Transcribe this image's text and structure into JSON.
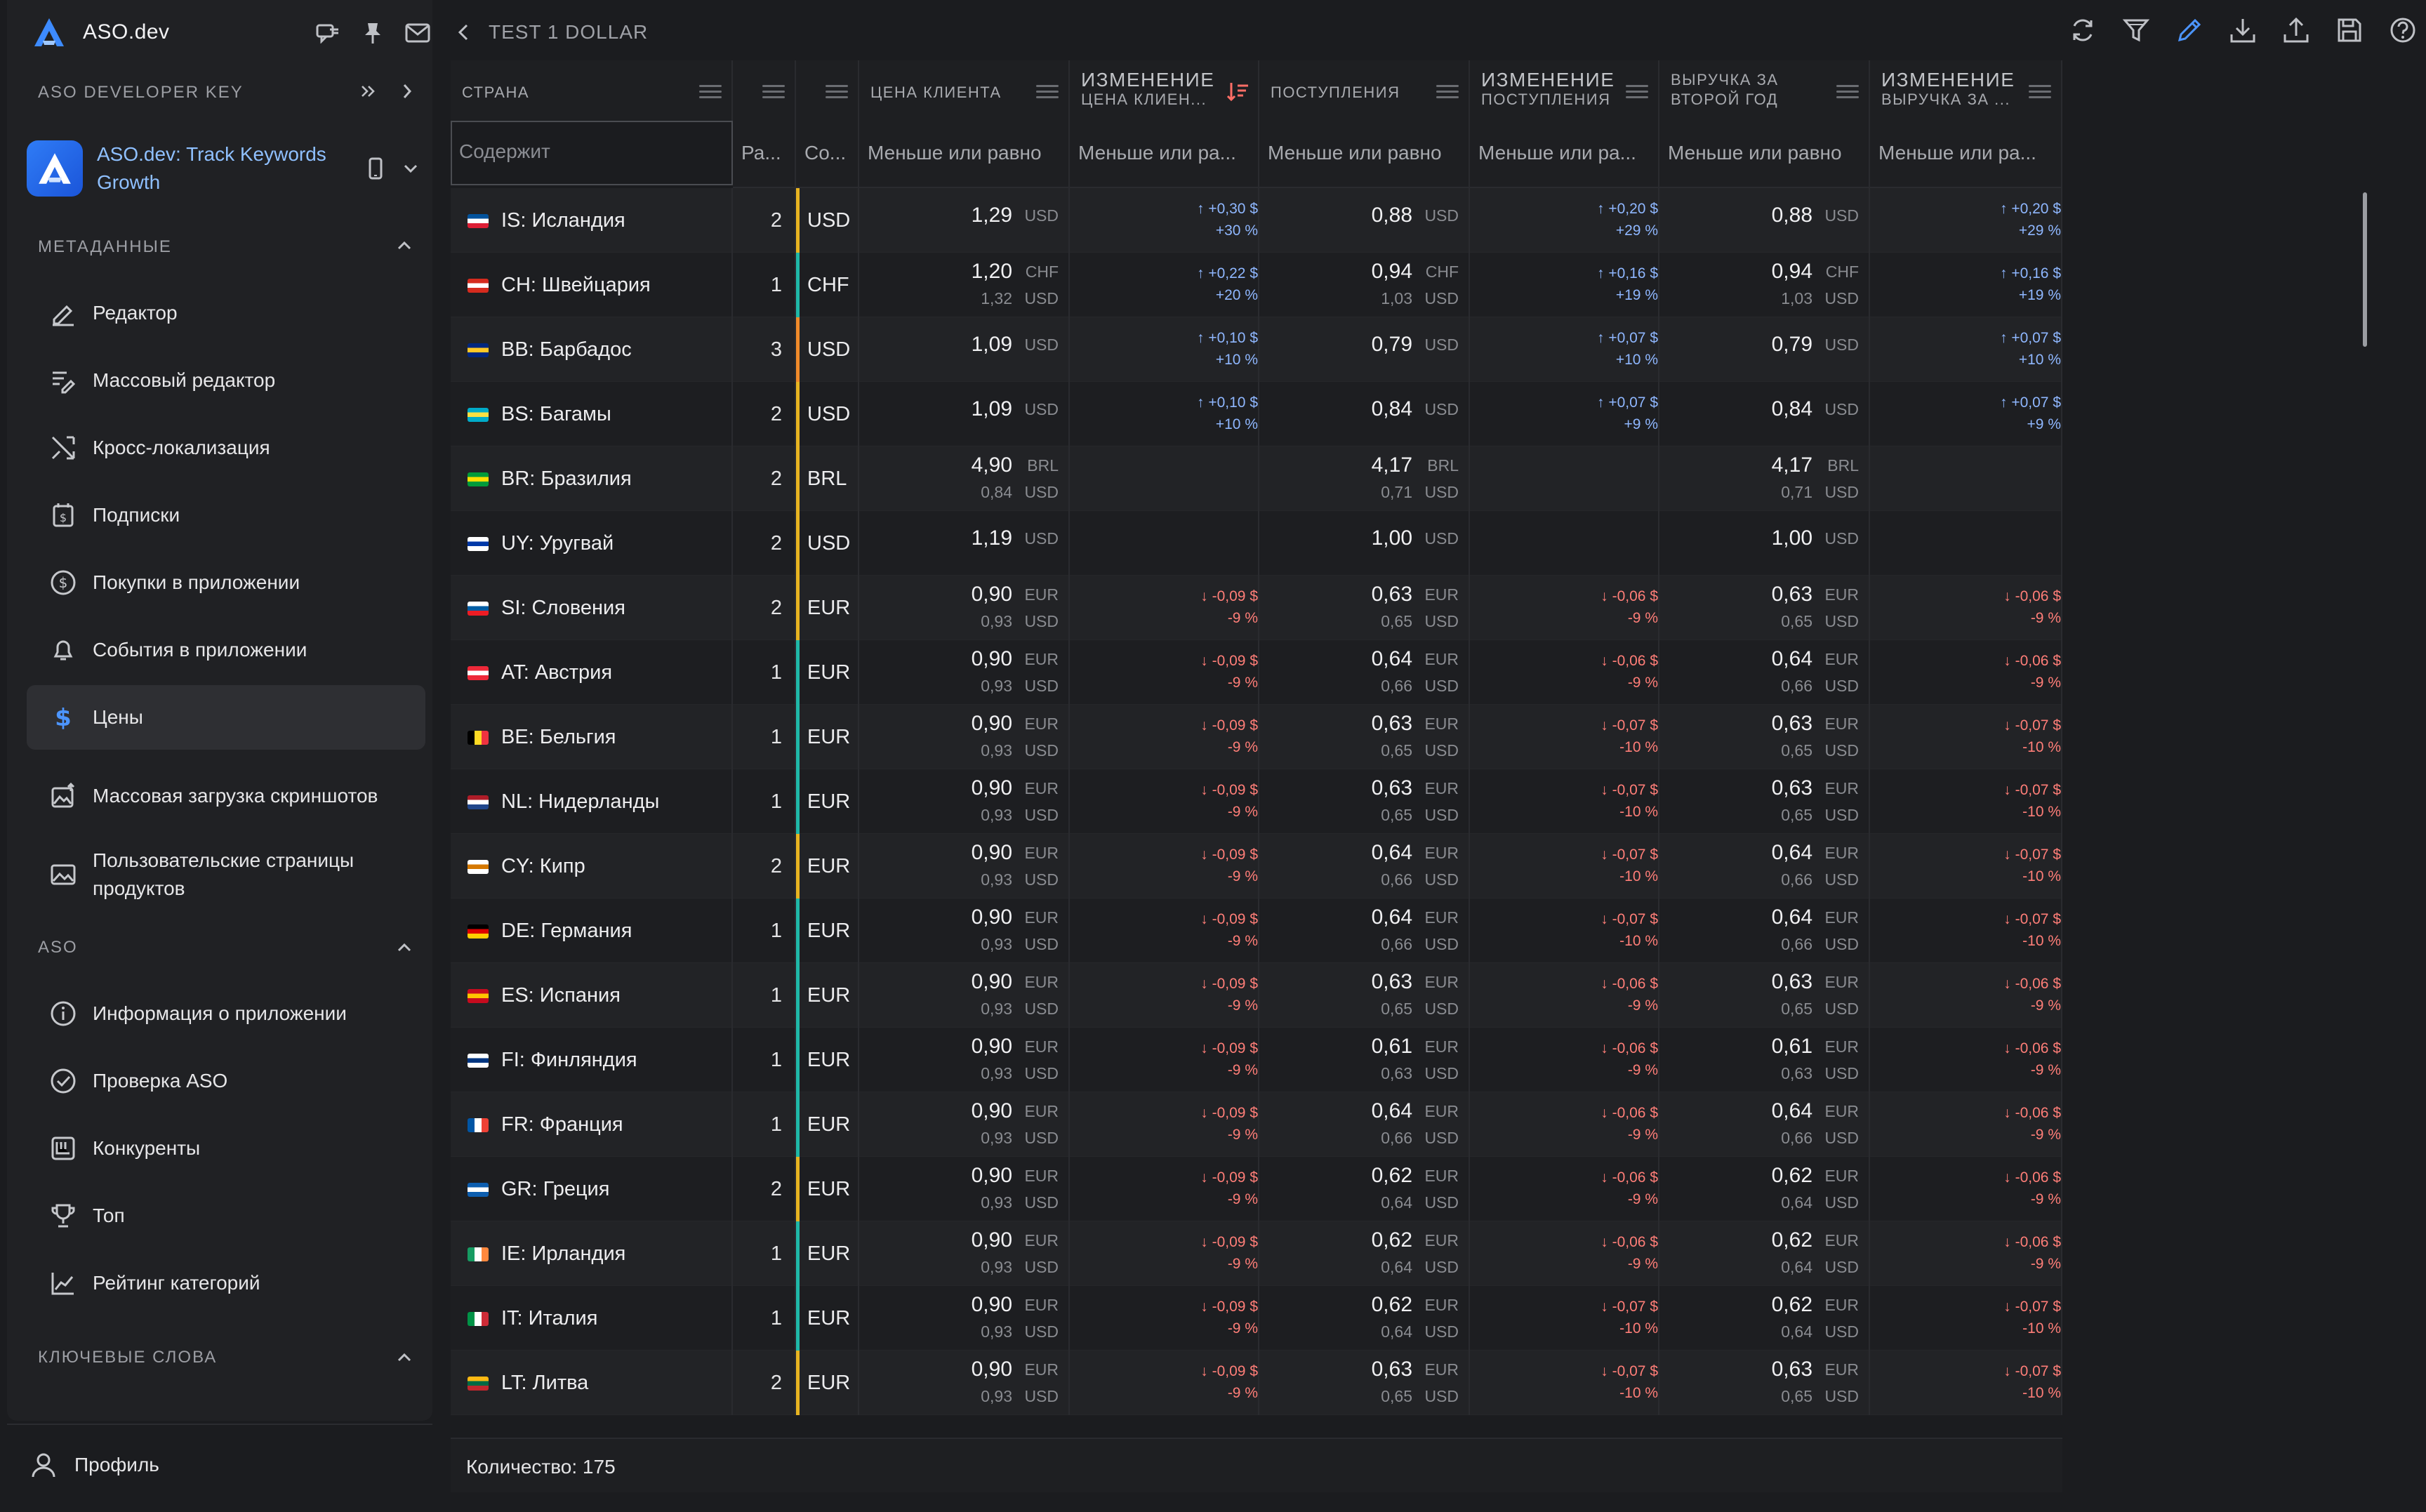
{
  "sidebar": {
    "brand": "ASO.dev",
    "developer_key_label": "ASO DEVELOPER KEY",
    "app_name": "ASO.dev: Track Keywords Growth",
    "sections": {
      "metadata": "МЕТАДАННЫЕ",
      "aso": "ASO",
      "keywords": "КЛЮЧЕВЫЕ СЛОВА"
    },
    "metadata_items": [
      {
        "label": "Редактор",
        "icon": "edit-icon"
      },
      {
        "label": "Массовый редактор",
        "icon": "bulk-edit-icon"
      },
      {
        "label": "Кросс-локализация",
        "icon": "shuffle-icon"
      },
      {
        "label": "Подписки",
        "icon": "subscription-icon"
      },
      {
        "label": "Покупки в приложении",
        "icon": "dollar-circle-icon"
      },
      {
        "label": "События в приложении",
        "icon": "bell-icon"
      },
      {
        "label": "Цены",
        "icon": "dollar-icon",
        "active": true
      },
      {
        "label": "Массовая загрузка скриншотов",
        "icon": "image-upload-icon"
      },
      {
        "label": "Пользовательские страницы продуктов",
        "icon": "image-icon"
      }
    ],
    "aso_items": [
      {
        "label": "Информация о приложении",
        "icon": "info-icon"
      },
      {
        "label": "Проверка ASO",
        "icon": "check-circle-icon"
      },
      {
        "label": "Конкуренты",
        "icon": "competitors-icon"
      },
      {
        "label": "Топ",
        "icon": "trophy-icon"
      },
      {
        "label": "Рейтинг категорий",
        "icon": "chart-icon"
      }
    ],
    "profile_label": "Профиль"
  },
  "header": {
    "title": "TEST 1 DOLLAR"
  },
  "columns": [
    {
      "key": "country",
      "label": "СТРАНА",
      "filter": "Содержит"
    },
    {
      "key": "rank",
      "label": "",
      "filter": "Ра..."
    },
    {
      "key": "currency",
      "label": "",
      "filter": "Со..."
    },
    {
      "key": "price",
      "label": "ЦЕНА КЛИЕНТА",
      "filter": "Меньше или равно"
    },
    {
      "key": "price_change",
      "label_big": "ИЗМЕНЕНИЕ",
      "label_small": "ЦЕНА КЛИЕН...",
      "filter": "Меньше или ра..."
    },
    {
      "key": "proceeds",
      "label": "ПОСТУПЛЕНИЯ",
      "filter": "Меньше или равно"
    },
    {
      "key": "proceeds_change",
      "label_big": "ИЗМЕНЕНИЕ",
      "label_small": "ПОСТУПЛЕНИЯ",
      "filter": "Меньше или ра..."
    },
    {
      "key": "proceeds_y2",
      "label_l1": "ВЫРУЧКА ЗА",
      "label_l2": "ВТОРОЙ ГОД",
      "filter": "Меньше или равно"
    },
    {
      "key": "proceeds_y2_change",
      "label_big": "ИЗМЕНЕНИЕ",
      "label_small": "ВЫРУЧКА ЗА ...",
      "filter": "Меньше или ра..."
    }
  ],
  "colors": {
    "bar_yellow": "#e7b421",
    "bar_teal": "#1fb8a8",
    "bar_orange": "#f08a2a",
    "up": "#8fb7ff",
    "down": "#ff7e78"
  },
  "rows": [
    {
      "country": "IS: Исландия",
      "flag": [
        "#02529c",
        "#ffffff",
        "#dc1e35"
      ],
      "rank": "2",
      "cur": "USD",
      "bar": "yellow",
      "price": "1,29",
      "price_cur": "USD",
      "price_sub": null,
      "pchg": [
        "↑ +0,30 $",
        "+30 %"
      ],
      "dir": "up",
      "proc": "0,88",
      "proc_cur": "USD",
      "proc_sub": null,
      "prchg": [
        "↑ +0,20 $",
        "+29 %"
      ],
      "y2": "0,88",
      "y2_cur": "USD",
      "y2_sub": null,
      "y2chg": [
        "↑ +0,20 $",
        "+29 %"
      ]
    },
    {
      "country": "CH: Швейцария",
      "flag": [
        "#d52b1e",
        "#ffffff",
        "#d52b1e"
      ],
      "rank": "1",
      "cur": "CHF",
      "bar": "teal",
      "price": "1,20",
      "price_cur": "CHF",
      "price_sub": "1,32",
      "pchg": [
        "↑ +0,22 $",
        "+20 %"
      ],
      "dir": "up",
      "proc": "0,94",
      "proc_cur": "CHF",
      "proc_sub": "1,03",
      "prchg": [
        "↑ +0,16 $",
        "+19 %"
      ],
      "y2": "0,94",
      "y2_cur": "CHF",
      "y2_sub": "1,03",
      "y2chg": [
        "↑ +0,16 $",
        "+19 %"
      ]
    },
    {
      "country": "BB: Барбадос",
      "flag": [
        "#00267f",
        "#ffc726",
        "#00267f"
      ],
      "rank": "3",
      "cur": "USD",
      "bar": "orange",
      "price": "1,09",
      "price_cur": "USD",
      "price_sub": null,
      "pchg": [
        "↑ +0,10 $",
        "+10 %"
      ],
      "dir": "up",
      "proc": "0,79",
      "proc_cur": "USD",
      "proc_sub": null,
      "prchg": [
        "↑ +0,07 $",
        "+10 %"
      ],
      "y2": "0,79",
      "y2_cur": "USD",
      "y2_sub": null,
      "y2chg": [
        "↑ +0,07 $",
        "+10 %"
      ]
    },
    {
      "country": "BS: Багамы",
      "flag": [
        "#00abc9",
        "#fae042",
        "#00abc9"
      ],
      "rank": "2",
      "cur": "USD",
      "bar": "yellow",
      "price": "1,09",
      "price_cur": "USD",
      "price_sub": null,
      "pchg": [
        "↑ +0,10 $",
        "+10 %"
      ],
      "dir": "up",
      "proc": "0,84",
      "proc_cur": "USD",
      "proc_sub": null,
      "prchg": [
        "↑ +0,07 $",
        "+9 %"
      ],
      "y2": "0,84",
      "y2_cur": "USD",
      "y2_sub": null,
      "y2chg": [
        "↑ +0,07 $",
        "+9 %"
      ]
    },
    {
      "country": "BR: Бразилия",
      "flag": [
        "#009b3a",
        "#fedf00",
        "#009b3a"
      ],
      "rank": "2",
      "cur": "BRL",
      "bar": "yellow",
      "price": "4,90",
      "price_cur": "BRL",
      "price_sub": "0,84",
      "pchg": null,
      "dir": "none",
      "proc": "4,17",
      "proc_cur": "BRL",
      "proc_sub": "0,71",
      "prchg": null,
      "y2": "4,17",
      "y2_cur": "BRL",
      "y2_sub": "0,71",
      "y2chg": null
    },
    {
      "country": "UY: Уругвай",
      "flag": [
        "#ffffff",
        "#0038a8",
        "#ffffff"
      ],
      "rank": "2",
      "cur": "USD",
      "bar": "yellow",
      "price": "1,19",
      "price_cur": "USD",
      "price_sub": null,
      "pchg": null,
      "dir": "none",
      "proc": "1,00",
      "proc_cur": "USD",
      "proc_sub": null,
      "prchg": null,
      "y2": "1,00",
      "y2_cur": "USD",
      "y2_sub": null,
      "y2chg": null
    },
    {
      "country": "SI: Словения",
      "flag": [
        "#ffffff",
        "#005da4",
        "#ed1c24"
      ],
      "rank": "2",
      "cur": "EUR",
      "bar": "yellow",
      "price": "0,90",
      "price_cur": "EUR",
      "price_sub": "0,93",
      "pchg": [
        "↓ -0,09 $",
        "-9 %"
      ],
      "dir": "down",
      "proc": "0,63",
      "proc_cur": "EUR",
      "proc_sub": "0,65",
      "prchg": [
        "↓ -0,06 $",
        "-9 %"
      ],
      "y2": "0,63",
      "y2_cur": "EUR",
      "y2_sub": "0,65",
      "y2chg": [
        "↓ -0,06 $",
        "-9 %"
      ]
    },
    {
      "country": "AT: Австрия",
      "flag": [
        "#ed2939",
        "#ffffff",
        "#ed2939"
      ],
      "rank": "1",
      "cur": "EUR",
      "bar": "teal",
      "price": "0,90",
      "price_cur": "EUR",
      "price_sub": "0,93",
      "pchg": [
        "↓ -0,09 $",
        "-9 %"
      ],
      "dir": "down",
      "proc": "0,64",
      "proc_cur": "EUR",
      "proc_sub": "0,66",
      "prchg": [
        "↓ -0,06 $",
        "-9 %"
      ],
      "y2": "0,64",
      "y2_cur": "EUR",
      "y2_sub": "0,66",
      "y2chg": [
        "↓ -0,06 $",
        "-9 %"
      ]
    },
    {
      "country": "BE: Бельгия",
      "flag": [
        "#000000",
        "#fdda24",
        "#ef3340"
      ],
      "rank": "1",
      "cur": "EUR",
      "bar": "teal",
      "vertical": true,
      "price": "0,90",
      "price_cur": "EUR",
      "price_sub": "0,93",
      "pchg": [
        "↓ -0,09 $",
        "-9 %"
      ],
      "dir": "down",
      "proc": "0,63",
      "proc_cur": "EUR",
      "proc_sub": "0,65",
      "prchg": [
        "↓ -0,07 $",
        "-10 %"
      ],
      "y2": "0,63",
      "y2_cur": "EUR",
      "y2_sub": "0,65",
      "y2chg": [
        "↓ -0,07 $",
        "-10 %"
      ]
    },
    {
      "country": "NL: Нидерланды",
      "flag": [
        "#ae1c28",
        "#ffffff",
        "#21468b"
      ],
      "rank": "1",
      "cur": "EUR",
      "bar": "teal",
      "price": "0,90",
      "price_cur": "EUR",
      "price_sub": "0,93",
      "pchg": [
        "↓ -0,09 $",
        "-9 %"
      ],
      "dir": "down",
      "proc": "0,63",
      "proc_cur": "EUR",
      "proc_sub": "0,65",
      "prchg": [
        "↓ -0,07 $",
        "-10 %"
      ],
      "y2": "0,63",
      "y2_cur": "EUR",
      "y2_sub": "0,65",
      "y2chg": [
        "↓ -0,07 $",
        "-10 %"
      ]
    },
    {
      "country": "CY: Кипр",
      "flag": [
        "#ffffff",
        "#d57800",
        "#ffffff"
      ],
      "rank": "2",
      "cur": "EUR",
      "bar": "yellow",
      "price": "0,90",
      "price_cur": "EUR",
      "price_sub": "0,93",
      "pchg": [
        "↓ -0,09 $",
        "-9 %"
      ],
      "dir": "down",
      "proc": "0,64",
      "proc_cur": "EUR",
      "proc_sub": "0,66",
      "prchg": [
        "↓ -0,07 $",
        "-10 %"
      ],
      "y2": "0,64",
      "y2_cur": "EUR",
      "y2_sub": "0,66",
      "y2chg": [
        "↓ -0,07 $",
        "-10 %"
      ]
    },
    {
      "country": "DE: Германия",
      "flag": [
        "#000000",
        "#dd0000",
        "#ffce00"
      ],
      "rank": "1",
      "cur": "EUR",
      "bar": "teal",
      "price": "0,90",
      "price_cur": "EUR",
      "price_sub": "0,93",
      "pchg": [
        "↓ -0,09 $",
        "-9 %"
      ],
      "dir": "down",
      "proc": "0,64",
      "proc_cur": "EUR",
      "proc_sub": "0,66",
      "prchg": [
        "↓ -0,07 $",
        "-10 %"
      ],
      "y2": "0,64",
      "y2_cur": "EUR",
      "y2_sub": "0,66",
      "y2chg": [
        "↓ -0,07 $",
        "-10 %"
      ]
    },
    {
      "country": "ES: Испания",
      "flag": [
        "#c60b1e",
        "#ffc400",
        "#c60b1e"
      ],
      "rank": "1",
      "cur": "EUR",
      "bar": "teal",
      "price": "0,90",
      "price_cur": "EUR",
      "price_sub": "0,93",
      "pchg": [
        "↓ -0,09 $",
        "-9 %"
      ],
      "dir": "down",
      "proc": "0,63",
      "proc_cur": "EUR",
      "proc_sub": "0,65",
      "prchg": [
        "↓ -0,06 $",
        "-9 %"
      ],
      "y2": "0,63",
      "y2_cur": "EUR",
      "y2_sub": "0,65",
      "y2chg": [
        "↓ -0,06 $",
        "-9 %"
      ]
    },
    {
      "country": "FI: Финляндия",
      "flag": [
        "#ffffff",
        "#003580",
        "#ffffff"
      ],
      "rank": "1",
      "cur": "EUR",
      "bar": "teal",
      "price": "0,90",
      "price_cur": "EUR",
      "price_sub": "0,93",
      "pchg": [
        "↓ -0,09 $",
        "-9 %"
      ],
      "dir": "down",
      "proc": "0,61",
      "proc_cur": "EUR",
      "proc_sub": "0,63",
      "prchg": [
        "↓ -0,06 $",
        "-9 %"
      ],
      "y2": "0,61",
      "y2_cur": "EUR",
      "y2_sub": "0,63",
      "y2chg": [
        "↓ -0,06 $",
        "-9 %"
      ]
    },
    {
      "country": "FR: Франция",
      "flag": [
        "#0055a4",
        "#ffffff",
        "#ef4135"
      ],
      "rank": "1",
      "cur": "EUR",
      "bar": "teal",
      "vertical": true,
      "price": "0,90",
      "price_cur": "EUR",
      "price_sub": "0,93",
      "pchg": [
        "↓ -0,09 $",
        "-9 %"
      ],
      "dir": "down",
      "proc": "0,64",
      "proc_cur": "EUR",
      "proc_sub": "0,66",
      "prchg": [
        "↓ -0,06 $",
        "-9 %"
      ],
      "y2": "0,64",
      "y2_cur": "EUR",
      "y2_sub": "0,66",
      "y2chg": [
        "↓ -0,06 $",
        "-9 %"
      ]
    },
    {
      "country": "GR: Греция",
      "flag": [
        "#0d5eaf",
        "#ffffff",
        "#0d5eaf"
      ],
      "rank": "2",
      "cur": "EUR",
      "bar": "yellow",
      "price": "0,90",
      "price_cur": "EUR",
      "price_sub": "0,93",
      "pchg": [
        "↓ -0,09 $",
        "-9 %"
      ],
      "dir": "down",
      "proc": "0,62",
      "proc_cur": "EUR",
      "proc_sub": "0,64",
      "prchg": [
        "↓ -0,06 $",
        "-9 %"
      ],
      "y2": "0,62",
      "y2_cur": "EUR",
      "y2_sub": "0,64",
      "y2chg": [
        "↓ -0,06 $",
        "-9 %"
      ]
    },
    {
      "country": "IE: Ирландия",
      "flag": [
        "#169b62",
        "#ffffff",
        "#ff883e"
      ],
      "rank": "1",
      "cur": "EUR",
      "bar": "teal",
      "vertical": true,
      "price": "0,90",
      "price_cur": "EUR",
      "price_sub": "0,93",
      "pchg": [
        "↓ -0,09 $",
        "-9 %"
      ],
      "dir": "down",
      "proc": "0,62",
      "proc_cur": "EUR",
      "proc_sub": "0,64",
      "prchg": [
        "↓ -0,06 $",
        "-9 %"
      ],
      "y2": "0,62",
      "y2_cur": "EUR",
      "y2_sub": "0,64",
      "y2chg": [
        "↓ -0,06 $",
        "-9 %"
      ]
    },
    {
      "country": "IT: Италия",
      "flag": [
        "#009246",
        "#ffffff",
        "#ce2b37"
      ],
      "rank": "1",
      "cur": "EUR",
      "bar": "teal",
      "vertical": true,
      "price": "0,90",
      "price_cur": "EUR",
      "price_sub": "0,93",
      "pchg": [
        "↓ -0,09 $",
        "-9 %"
      ],
      "dir": "down",
      "proc": "0,62",
      "proc_cur": "EUR",
      "proc_sub": "0,64",
      "prchg": [
        "↓ -0,07 $",
        "-10 %"
      ],
      "y2": "0,62",
      "y2_cur": "EUR",
      "y2_sub": "0,64",
      "y2chg": [
        "↓ -0,07 $",
        "-10 %"
      ]
    },
    {
      "country": "LT: Литва",
      "flag": [
        "#fdb913",
        "#006a44",
        "#c1272d"
      ],
      "rank": "2",
      "cur": "EUR",
      "bar": "yellow",
      "price": "0,90",
      "price_cur": "EUR",
      "price_sub": "0,93",
      "pchg": [
        "↓ -0,09 $",
        "-9 %"
      ],
      "dir": "down",
      "proc": "0,63",
      "proc_cur": "EUR",
      "proc_sub": "0,65",
      "prchg": [
        "↓ -0,07 $",
        "-10 %"
      ],
      "y2": "0,63",
      "y2_cur": "EUR",
      "y2_sub": "0,65",
      "y2chg": [
        "↓ -0,07 $",
        "-10 %"
      ]
    }
  ],
  "footer": {
    "count_text": "Количество: 175"
  }
}
